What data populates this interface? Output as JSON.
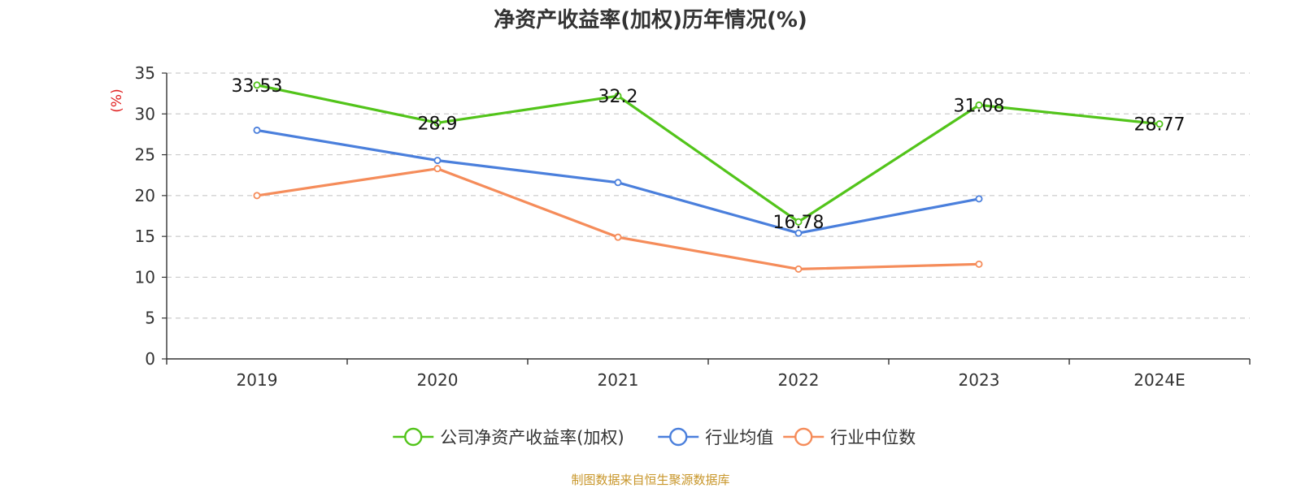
{
  "chart_data": {
    "type": "line",
    "title": "净资产收益率(加权)历年情况(%)",
    "ylabel": "(%)",
    "categories": [
      "2019",
      "2020",
      "2021",
      "2022",
      "2023",
      "2024E"
    ],
    "ylim": [
      0,
      35
    ],
    "yticks": [
      0,
      5,
      10,
      15,
      20,
      25,
      30,
      35
    ],
    "grid": true,
    "legend_position": "bottom",
    "series": [
      {
        "name": "公司净资产收益率(加权)",
        "color": "#52c41a",
        "values": [
          33.53,
          28.9,
          32.2,
          16.78,
          31.08,
          28.77
        ],
        "labels": [
          "33.53",
          "28.9",
          "32.2",
          "16.78",
          "31.08",
          "28.77"
        ]
      },
      {
        "name": "行业均值",
        "color": "#4a7fdc",
        "values": [
          28.0,
          24.3,
          21.6,
          15.4,
          19.6,
          null
        ]
      },
      {
        "name": "行业中位数",
        "color": "#f58c5a",
        "values": [
          20.0,
          23.3,
          14.9,
          11.0,
          11.6,
          null
        ]
      }
    ]
  },
  "source_text": "制图数据来自恒生聚源数据库",
  "colors": {
    "axis_label": "#e02020",
    "source": "#c8962a"
  }
}
